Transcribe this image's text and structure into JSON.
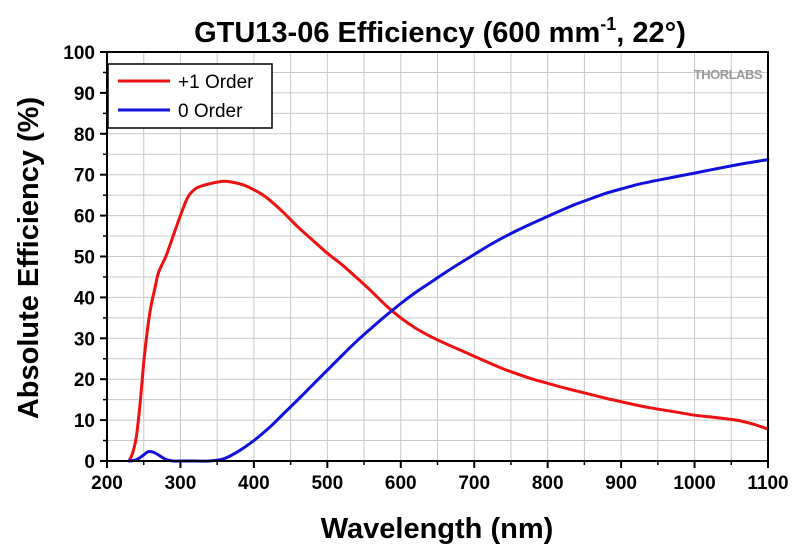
{
  "chart_data": {
    "type": "line",
    "title": {
      "main": "GTU13-06 Efficiency (600 mm",
      "superscript": "-1",
      "suffix": ", 22°)"
    },
    "xlabel": "Wavelength (nm)",
    "ylabel": "Absolute Efficiency (%)",
    "xlim": [
      200,
      1100
    ],
    "ylim": [
      0,
      100
    ],
    "xticks": [
      200,
      300,
      400,
      500,
      600,
      700,
      800,
      900,
      1000,
      1100
    ],
    "yticks": [
      0,
      10,
      20,
      30,
      40,
      50,
      60,
      70,
      80,
      90,
      100
    ],
    "grid": true,
    "legend_position": "top-left",
    "brand_watermark": "THORLABS",
    "series": [
      {
        "name": "+1 Order",
        "color": "#ee1111",
        "x": [
          230,
          235,
          240,
          245,
          250,
          255,
          260,
          265,
          270,
          280,
          290,
          300,
          310,
          320,
          330,
          340,
          350,
          360,
          370,
          380,
          390,
          400,
          410,
          420,
          440,
          460,
          480,
          500,
          520,
          540,
          560,
          580,
          600,
          620,
          640,
          660,
          680,
          700,
          720,
          740,
          760,
          780,
          800,
          820,
          840,
          860,
          880,
          900,
          920,
          940,
          960,
          980,
          1000,
          1020,
          1040,
          1060,
          1080,
          1100
        ],
        "y": [
          0,
          2,
          6,
          14,
          24,
          32,
          38,
          42,
          46,
          50,
          55,
          60,
          64.5,
          66.5,
          67.3,
          67.8,
          68.2,
          68.4,
          68.2,
          67.8,
          67.2,
          66.3,
          65.3,
          64,
          60.8,
          57.2,
          54,
          50.8,
          48,
          44.8,
          41.5,
          38,
          35,
          32.5,
          30.5,
          28.8,
          27.2,
          25.6,
          24,
          22.5,
          21.2,
          20,
          19,
          18,
          17.1,
          16.2,
          15.3,
          14.5,
          13.7,
          13,
          12.4,
          11.8,
          11.2,
          10.8,
          10.4,
          9.9,
          9,
          7.8
        ]
      },
      {
        "name": "0 Order",
        "color": "#1111dd",
        "x": [
          230,
          240,
          250,
          255,
          260,
          265,
          270,
          280,
          290,
          300,
          320,
          340,
          360,
          380,
          400,
          420,
          440,
          460,
          480,
          500,
          520,
          540,
          560,
          580,
          600,
          620,
          640,
          660,
          680,
          700,
          720,
          740,
          760,
          780,
          800,
          820,
          840,
          860,
          880,
          900,
          920,
          940,
          960,
          980,
          1000,
          1020,
          1040,
          1060,
          1080,
          1100
        ],
        "y": [
          0,
          0.3,
          1.5,
          2.2,
          2.3,
          2,
          1.5,
          0.4,
          0,
          0,
          0,
          0,
          0.6,
          2.5,
          5,
          8,
          11.5,
          15,
          18.6,
          22.2,
          25.8,
          29.3,
          32.5,
          35.6,
          38.5,
          41.2,
          43.6,
          46,
          48.3,
          50.5,
          52.7,
          54.7,
          56.5,
          58.2,
          59.8,
          61.4,
          62.9,
          64.2,
          65.5,
          66.5,
          67.5,
          68.3,
          69,
          69.7,
          70.4,
          71.1,
          71.8,
          72.5,
          73.1,
          73.7
        ]
      }
    ]
  }
}
